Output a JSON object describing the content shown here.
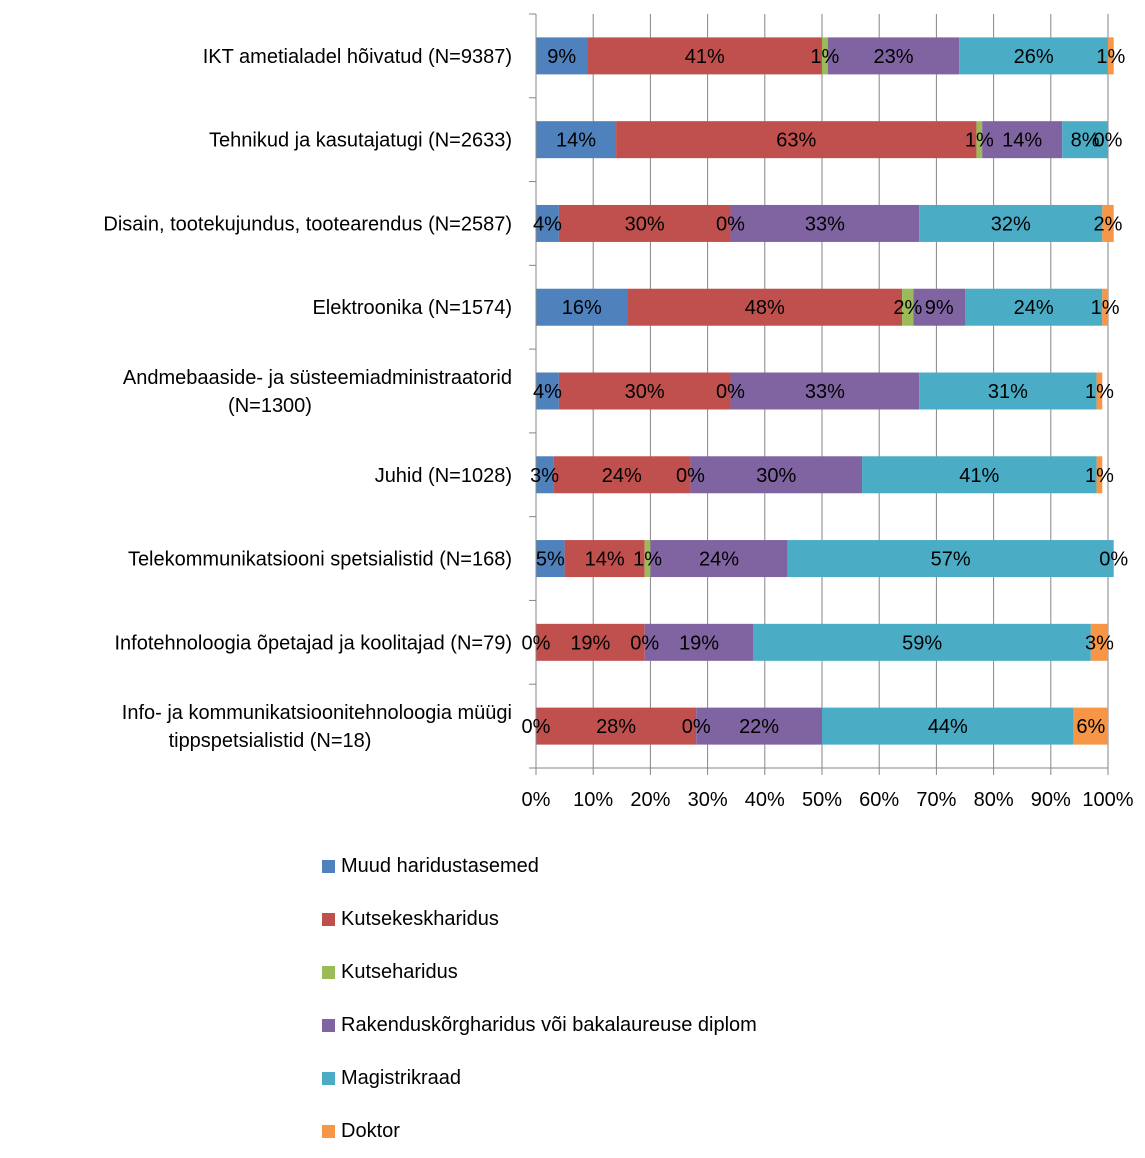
{
  "chart_data": {
    "type": "bar",
    "orientation": "horizontal",
    "stacked": "percent",
    "categories": [
      [
        "IKT ametialadel hõivatud (N=9387)"
      ],
      [
        "Tehnikud ja kasutajatugi (N=2633)"
      ],
      [
        "Disain, tootekujundus, tootearendus (N=2587)"
      ],
      [
        "Elektroonika (N=1574)"
      ],
      [
        "Andmebaaside- ja süsteemiadministraatorid",
        "(N=1300)"
      ],
      [
        "Juhid (N=1028)"
      ],
      [
        "Telekommunikatsiooni spetsialistid (N=168)"
      ],
      [
        "Infotehnoloogia õpetajad ja koolitajad  (N=79)"
      ],
      [
        "Info- ja kommunikatsioonitehnoloogia müügi",
        "tippspetsialistid  (N=18)"
      ]
    ],
    "series": [
      {
        "name": "Muud haridustasemed",
        "color": "#4F81BD",
        "values": [
          9,
          14,
          4,
          16,
          4,
          3,
          5,
          0,
          0
        ],
        "labels": [
          "9%",
          "14%",
          "4%",
          "16%",
          "4%",
          "3%",
          "5%",
          "0%",
          "0%"
        ]
      },
      {
        "name": "Kutsekeskharidus",
        "color": "#C0504D",
        "values": [
          41,
          63,
          30,
          48,
          30,
          24,
          14,
          19,
          28
        ],
        "labels": [
          "41%",
          "63%",
          "30%",
          "48%",
          "30%",
          "24%",
          "14%",
          "19%",
          "28%"
        ]
      },
      {
        "name": "Kutseharidus",
        "color": "#9BBB59",
        "values": [
          1,
          1,
          0,
          2,
          0,
          0,
          1,
          0,
          0
        ],
        "labels": [
          "1%",
          "1%",
          "0%",
          "2%",
          "0%",
          "0%",
          "1%",
          "0%",
          "0%"
        ]
      },
      {
        "name": "Rakenduskõrgharidus või bakalaureuse diplom",
        "color": "#8064A2",
        "values": [
          23,
          14,
          33,
          9,
          33,
          30,
          24,
          19,
          22
        ],
        "labels": [
          "23%",
          "14%",
          "33%",
          "9%",
          "33%",
          "30%",
          "24%",
          "19%",
          "22%"
        ]
      },
      {
        "name": "Magistrikraad",
        "color": "#4BACC6",
        "values": [
          26,
          8,
          32,
          24,
          31,
          41,
          57,
          59,
          44
        ],
        "labels": [
          "26%",
          "8%",
          "32%",
          "24%",
          "31%",
          "41%",
          "57%",
          "59%",
          "44%"
        ]
      },
      {
        "name": "Doktor",
        "color": "#F79646",
        "values": [
          1,
          0,
          2,
          1,
          1,
          1,
          0,
          3,
          6
        ],
        "labels": [
          "1%",
          "0%",
          "2%",
          "1%",
          "1%",
          "1%",
          "0%",
          "3%",
          "6%"
        ]
      }
    ],
    "x_ticks": [
      "0%",
      "10%",
      "20%",
      "30%",
      "40%",
      "50%",
      "60%",
      "70%",
      "80%",
      "90%",
      "100%"
    ],
    "xlim": [
      0,
      100
    ],
    "grid": "vertical",
    "legend_position": "bottom",
    "title": "",
    "xlabel": "",
    "ylabel": ""
  }
}
